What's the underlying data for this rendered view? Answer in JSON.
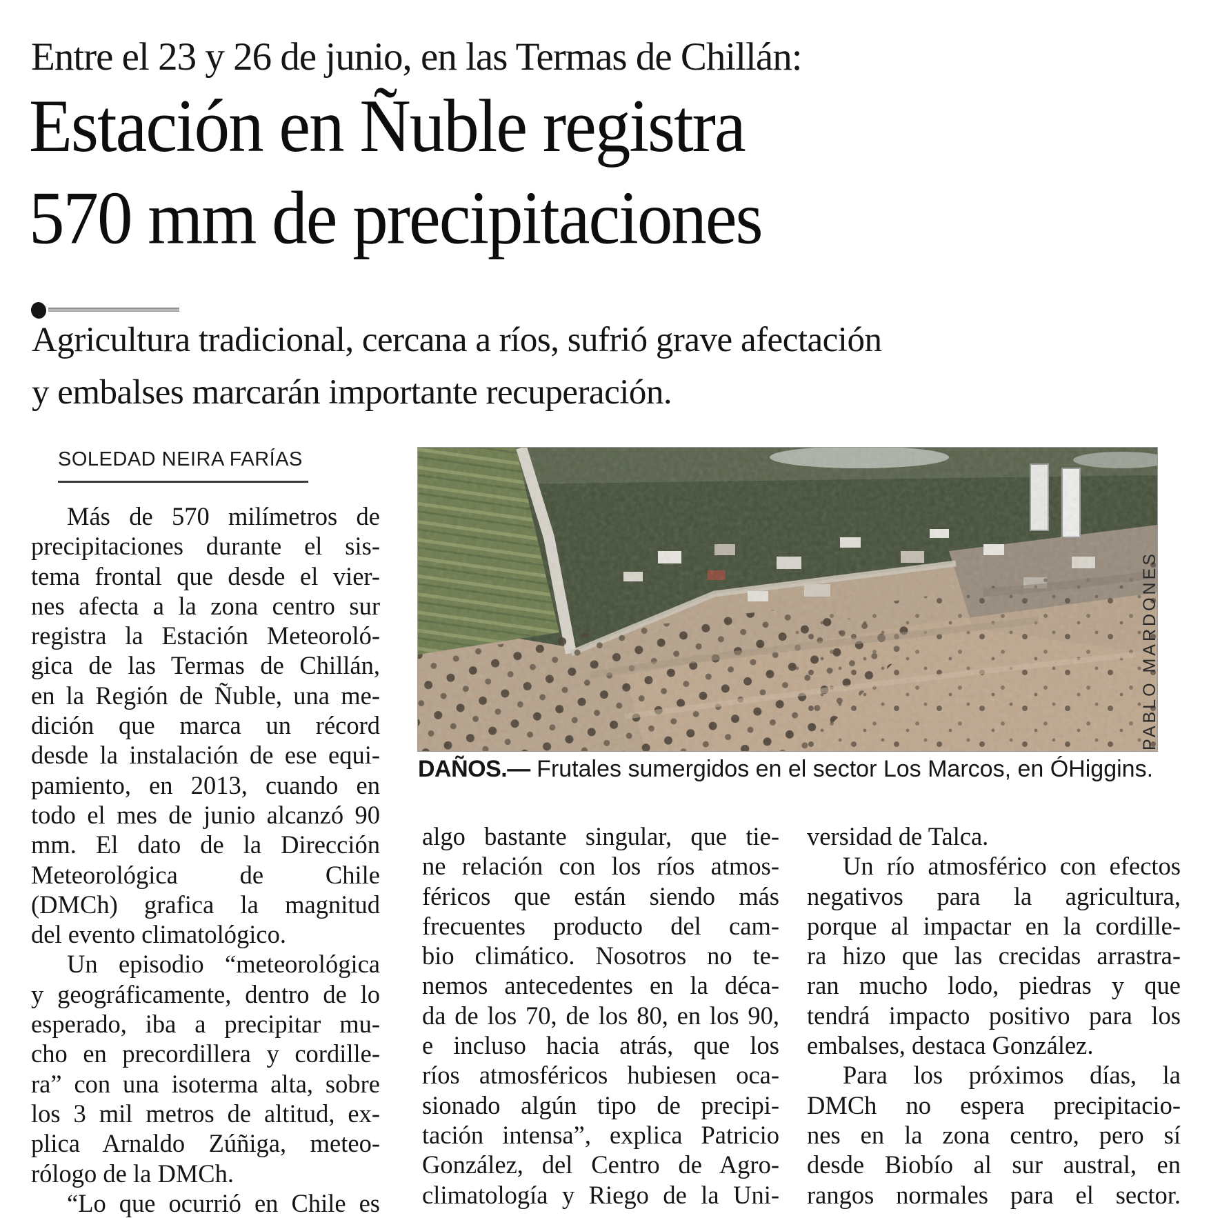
{
  "kicker": "Entre el 23 y 26 de junio, en las Termas de Chillán:",
  "headline": {
    "line1": "Estación en Ñuble registra",
    "line2": "570 mm de precipitaciones"
  },
  "subhead": {
    "line1": "Agricultura tradicional, cercana a ríos, sufrió grave afectación",
    "line2": "y embalses marcarán importante recuperación."
  },
  "byline": "SOLEDAD NEIRA FARÍAS",
  "photo": {
    "caption_label": "DAÑOS.—",
    "caption_text": " Frutales sumergidos en el sector Los Marcos, en ÓHiggins.",
    "credit": "PABLO MARDONES"
  },
  "body": {
    "col1": {
      "indent": [
        0,
        15,
        23
      ],
      "para_end": [
        14,
        22
      ],
      "lines": [
        "Más de 570 milímetros de",
        "precipitaciones durante el sis-",
        "tema frontal que desde el vier-",
        "nes afecta a la zona centro sur",
        "registra la Estación Meteoroló-",
        "gica de las Termas de Chillán,",
        "en la Región de Ñuble, una me-",
        "dición que marca un récord",
        "desde la instalación de ese equi-",
        "pamiento, en 2013, cuando en",
        "todo el mes de junio alcanzó 90",
        "mm. El dato de la Dirección",
        "Meteorológica de Chile",
        "(DMCh) grafica la magnitud",
        "del evento climatológico.",
        "Un episodio “meteorológica",
        "y geográficamente, dentro de lo",
        "esperado, iba a precipitar mu-",
        "cho en precordillera y cordille-",
        "ra” con una isoterma alta, sobre",
        "los 3 mil metros de altitud, ex-",
        "plica Arnaldo Zúñiga, meteo-",
        "rólogo de la DMCh.",
        "“Lo que ocurrió en Chile es"
      ]
    },
    "col2": {
      "indent": [],
      "para_end": [],
      "lines": [
        "algo bastante singular, que tie-",
        "ne relación con los ríos atmos-",
        "féricos que están siendo más",
        "frecuentes producto del cam-",
        "bio climático. Nosotros no te-",
        "nemos antecedentes en la déca-",
        "da de los 70, de los 80, en los 90,",
        "e incluso hacia atrás, que los",
        "ríos atmosféricos hubiesen oca-",
        "sionado algún tipo de precipi-",
        "tación intensa”, explica Patricio",
        "González, del Centro de Agro-",
        "climatología y Riego de la Uni-"
      ]
    },
    "col3": {
      "indent": [
        1,
        8
      ],
      "para_end": [
        0,
        7
      ],
      "lines": [
        "versidad de Talca.",
        "Un río atmosférico con efectos",
        "negativos para la agricultura,",
        "porque al impactar en la cordille-",
        "ra hizo que las crecidas arrastra-",
        "ran mucho lodo, piedras y que",
        "tendrá impacto positivo para los",
        "embalses, destaca González.",
        "Para los próximos días, la",
        "DMCh no espera precipitacio-",
        "nes en la zona centro, pero sí",
        "desde Biobío al sur austral, en",
        "rangos normales para el sector."
      ]
    }
  }
}
